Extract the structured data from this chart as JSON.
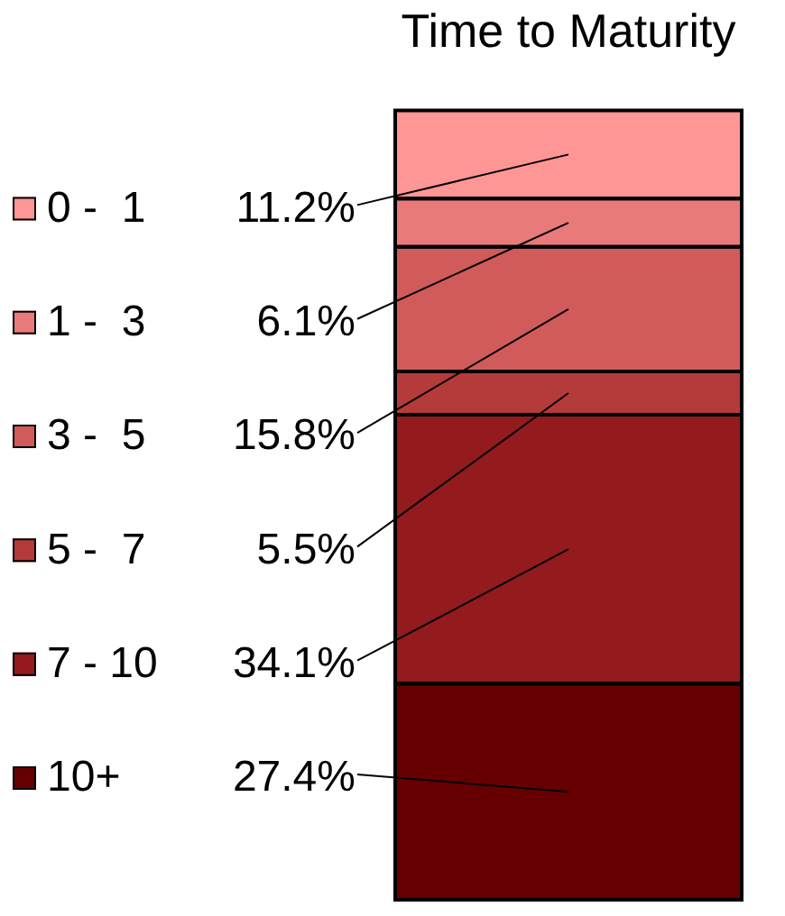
{
  "chart_data": {
    "type": "bar",
    "title": "Time to Maturity",
    "categories": [
      null
    ],
    "stacked": true,
    "tick_labels": false,
    "legend": "left",
    "series": [
      {
        "name": "10+",
        "color": "#660000",
        "values": [
          27.4
        ],
        "value_labels": [
          "27.4%"
        ]
      },
      {
        "name": "7 - 10",
        "color": "#931b1e",
        "values": [
          34.1
        ],
        "value_labels": [
          "34.1%"
        ]
      },
      {
        "name": "5 -  7",
        "color": "#b53a3a",
        "values": [
          5.5
        ],
        "value_labels": [
          "5.5%"
        ]
      },
      {
        "name": "3 -  5",
        "color": "#d15b5b",
        "values": [
          15.8
        ],
        "value_labels": [
          "15.8%"
        ]
      },
      {
        "name": "1 -  3",
        "color": "#e87a7a",
        "values": [
          6.1
        ],
        "value_labels": [
          "6.1%"
        ]
      },
      {
        "name": "0 -  1",
        "color": "#ff9696",
        "values": [
          11.2
        ],
        "value_labels": [
          "11.2%"
        ]
      }
    ]
  }
}
